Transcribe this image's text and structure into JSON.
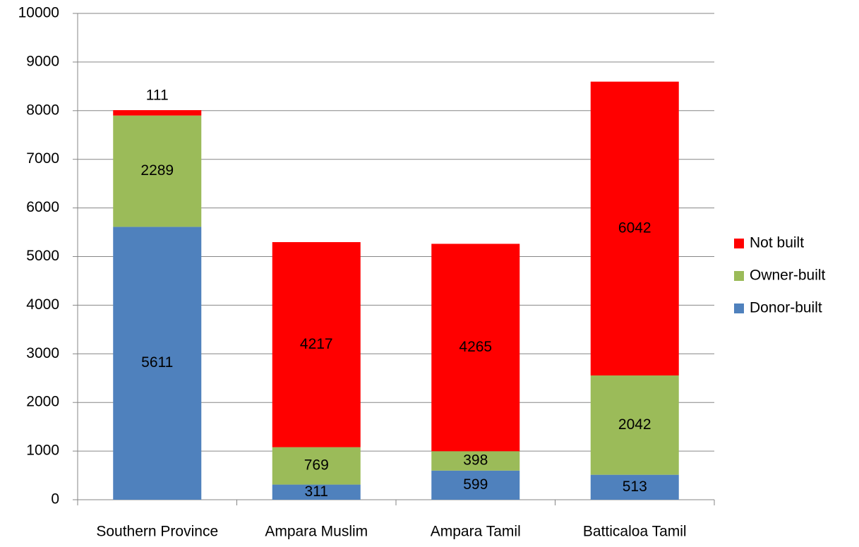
{
  "chart_data": {
    "type": "stacked_bar",
    "categories": [
      "Southern Province",
      "Ampara Muslim",
      "Ampara Tamil",
      "Batticaloa Tamil"
    ],
    "series": [
      {
        "name": "Donor-built",
        "color": "#4f81bd",
        "values": [
          5611,
          311,
          599,
          513
        ]
      },
      {
        "name": "Owner-built",
        "color": "#9bbb59",
        "values": [
          2289,
          769,
          398,
          2042
        ]
      },
      {
        "name": "Not built",
        "color": "#ff0000",
        "values": [
          111,
          4217,
          4265,
          6042
        ]
      }
    ],
    "ylim": [
      0,
      10000
    ],
    "yticks": [
      0,
      1000,
      2000,
      3000,
      4000,
      5000,
      6000,
      7000,
      8000,
      9000,
      10000
    ],
    "grid": true,
    "legend": "right"
  }
}
